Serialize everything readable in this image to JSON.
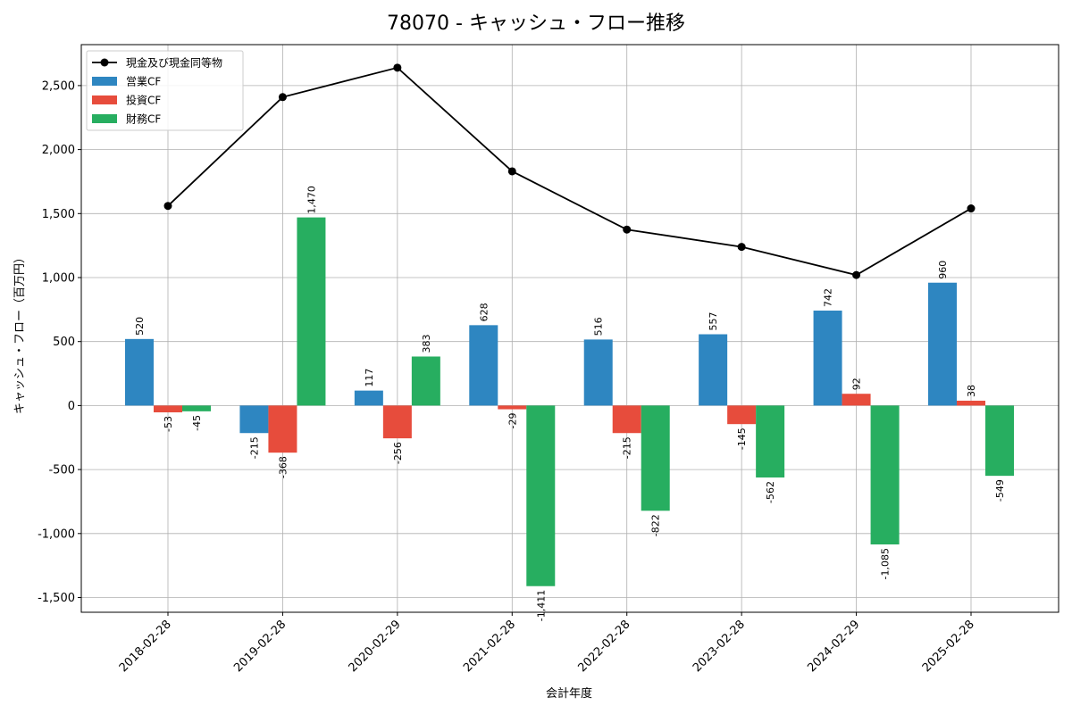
{
  "chart_data": {
    "type": "bar",
    "title": "78070 - キャッシュ・フロー推移",
    "xlabel": "会計年度",
    "ylabel": "キャッシュ・フロー（百万円）",
    "categories": [
      "2018-02-28",
      "2019-02-28",
      "2020-02-29",
      "2021-02-28",
      "2022-02-28",
      "2023-02-28",
      "2024-02-29",
      "2025-02-28"
    ],
    "ylim": [
      -1615,
      2820
    ],
    "yticks": [
      -1500,
      -1000,
      -500,
      0,
      500,
      1000,
      1500,
      2000,
      2500
    ],
    "ytick_labels": [
      "-1,500",
      "-1,000",
      "-500",
      "0",
      "500",
      "1,000",
      "1,500",
      "2,000",
      "2,500"
    ],
    "grid": true,
    "legend_position": "top-left",
    "series": [
      {
        "name": "営業CF",
        "kind": "bar",
        "color": "#2e86c1",
        "values": [
          520,
          -215,
          117,
          628,
          516,
          557,
          742,
          960
        ],
        "labels": [
          "520",
          "-215",
          "117",
          "628",
          "516",
          "557",
          "742",
          "960"
        ]
      },
      {
        "name": "投資CF",
        "kind": "bar",
        "color": "#e74c3c",
        "values": [
          -53,
          -368,
          -256,
          -29,
          -215,
          -145,
          92,
          38
        ],
        "labels": [
          "-53",
          "-368",
          "-256",
          "-29",
          "-215",
          "-145",
          "92",
          "38"
        ]
      },
      {
        "name": "財務CF",
        "kind": "bar",
        "color": "#27ae60",
        "values": [
          -45,
          1470,
          383,
          -1411,
          -822,
          -562,
          -1085,
          -549
        ],
        "labels": [
          "-45",
          "1,470",
          "383",
          "-1,411",
          "-822",
          "-562",
          "-1,085",
          "-549"
        ]
      },
      {
        "name": "現金及び現金同等物",
        "kind": "line",
        "color": "#000000",
        "values": [
          1560,
          2410,
          2640,
          1830,
          1375,
          1240,
          1020,
          1540
        ]
      }
    ]
  }
}
